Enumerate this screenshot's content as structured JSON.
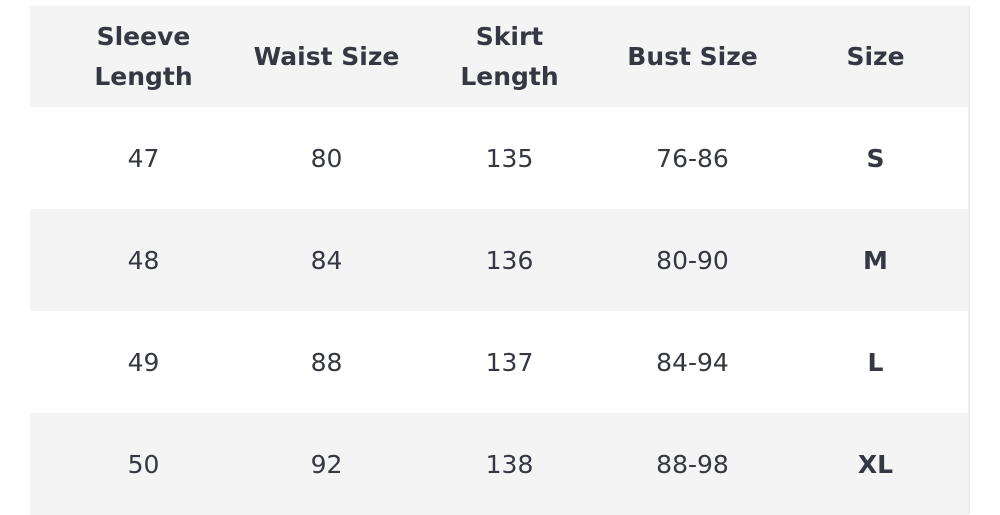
{
  "table": {
    "headers": [
      "Sleeve\nLength",
      "Waist Size",
      "Skirt\nLength",
      "Bust Size",
      "Size"
    ],
    "rows": [
      [
        "47",
        "80",
        "135",
        "76-86",
        "S"
      ],
      [
        "48",
        "84",
        "136",
        "80-90",
        "M"
      ],
      [
        "49",
        "88",
        "137",
        "84-94",
        "L"
      ],
      [
        "50",
        "92",
        "138",
        "88-98",
        "XL"
      ]
    ]
  },
  "colors": {
    "text": "#353842",
    "stripe": "#f4f4f5",
    "background": "#ffffff"
  }
}
